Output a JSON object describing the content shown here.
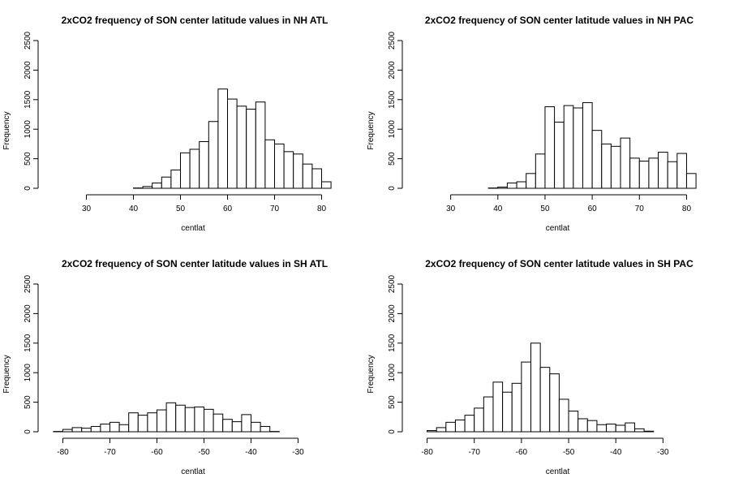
{
  "chart_data": [
    {
      "type": "bar",
      "title": "2xCO2 frequency of SON center latitude values in NH ATL",
      "xlabel": "centlat",
      "ylabel": "Frequency",
      "xlim": [
        22.5,
        82.5
      ],
      "ylim": [
        0,
        2500
      ],
      "xticks": [
        30,
        40,
        50,
        60,
        70,
        80
      ],
      "yticks": [
        0,
        500,
        1000,
        1500,
        2000,
        2500
      ],
      "bin_width": 2,
      "bin_start": 24,
      "values": [
        0,
        0,
        0,
        0,
        0,
        0,
        0,
        0,
        5,
        30,
        90,
        190,
        310,
        600,
        660,
        790,
        1130,
        1680,
        1510,
        1390,
        1340,
        1460,
        820,
        750,
        620,
        580,
        410,
        330,
        110
      ]
    },
    {
      "type": "bar",
      "title": "2xCO2 frequency of SON center latitude values in NH PAC",
      "xlabel": "centlat",
      "ylabel": "Frequency",
      "xlim": [
        22.5,
        82.5
      ],
      "ylim": [
        0,
        2500
      ],
      "xticks": [
        30,
        40,
        50,
        60,
        70,
        80
      ],
      "yticks": [
        0,
        500,
        1000,
        1500,
        2000,
        2500
      ],
      "bin_width": 2,
      "bin_start": 24,
      "values": [
        0,
        0,
        0,
        0,
        0,
        0,
        0,
        5,
        20,
        90,
        110,
        250,
        580,
        1380,
        1120,
        1400,
        1360,
        1450,
        980,
        750,
        710,
        850,
        510,
        460,
        510,
        610,
        450,
        590,
        250
      ]
    },
    {
      "type": "bar",
      "title": "2xCO2 frequency of SON center latitude values in SH ATL",
      "xlabel": "centlat",
      "ylabel": "Frequency",
      "xlim": [
        -82.5,
        -22.5
      ],
      "ylim": [
        0,
        2500
      ],
      "xticks": [
        -80,
        -70,
        -60,
        -50,
        -40,
        -30
      ],
      "yticks": [
        0,
        500,
        1000,
        1500,
        2000,
        2500
      ],
      "bin_width": 2,
      "bin_start": -82,
      "values": [
        5,
        40,
        70,
        60,
        90,
        130,
        160,
        120,
        320,
        280,
        320,
        370,
        490,
        450,
        410,
        420,
        380,
        300,
        210,
        170,
        290,
        160,
        90,
        5,
        0,
        0,
        0,
        0,
        0
      ]
    },
    {
      "type": "bar",
      "title": "2xCO2 frequency of SON center latitude values in SH PAC",
      "xlabel": "centlat",
      "ylabel": "Frequency",
      "xlim": [
        -82.5,
        -22.5
      ],
      "ylim": [
        0,
        2500
      ],
      "xticks": [
        -80,
        -70,
        -60,
        -50,
        -40,
        -30
      ],
      "yticks": [
        0,
        500,
        1000,
        1500,
        2000,
        2500
      ],
      "bin_width": 2,
      "bin_start": -80,
      "values": [
        20,
        70,
        160,
        200,
        280,
        400,
        590,
        840,
        670,
        820,
        1180,
        1500,
        1090,
        980,
        550,
        350,
        220,
        190,
        120,
        130,
        110,
        150,
        50,
        10,
        0,
        0,
        0,
        0
      ]
    }
  ]
}
